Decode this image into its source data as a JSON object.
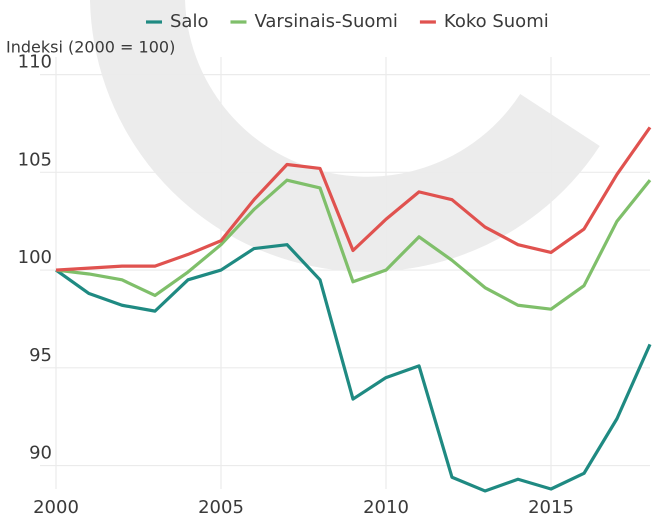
{
  "chart_data": {
    "type": "line",
    "y_label": "Indeksi (2000 = 100)",
    "x": [
      2000,
      2001,
      2002,
      2003,
      2004,
      2005,
      2006,
      2007,
      2008,
      2009,
      2010,
      2011,
      2012,
      2013,
      2014,
      2015,
      2016,
      2017,
      2018
    ],
    "series": [
      {
        "name": "Salo",
        "color": "#1f8a82",
        "values": [
          100,
          98.8,
          98.2,
          97.9,
          99.5,
          100,
          101.1,
          101.3,
          99.5,
          93.4,
          94.5,
          95.1,
          89.4,
          88.7,
          89.3,
          88.8,
          89.6,
          92.4,
          96.2
        ]
      },
      {
        "name": "Varsinais-Suomi",
        "color": "#7fbf6a",
        "values": [
          100,
          99.8,
          99.5,
          98.7,
          99.9,
          101.3,
          103.1,
          104.6,
          104.2,
          99.4,
          100,
          101.7,
          100.5,
          99.1,
          98.2,
          98.0,
          99.2,
          102.5,
          104.6
        ]
      },
      {
        "name": "Koko Suomi",
        "color": "#e0524f",
        "values": [
          100,
          100.1,
          100.2,
          100.2,
          100.8,
          101.5,
          103.6,
          105.4,
          105.2,
          101.0,
          102.6,
          104.0,
          103.6,
          102.2,
          101.3,
          100.9,
          102.1,
          104.9,
          107.3
        ]
      }
    ],
    "xlim": [
      2000,
      2018
    ],
    "ylim": [
      88.8,
      110.9
    ],
    "xticks": [
      2000,
      2005,
      2010,
      2015
    ],
    "yticks": [
      90,
      95,
      100,
      105,
      110
    ],
    "grid": true,
    "legend": "top"
  }
}
